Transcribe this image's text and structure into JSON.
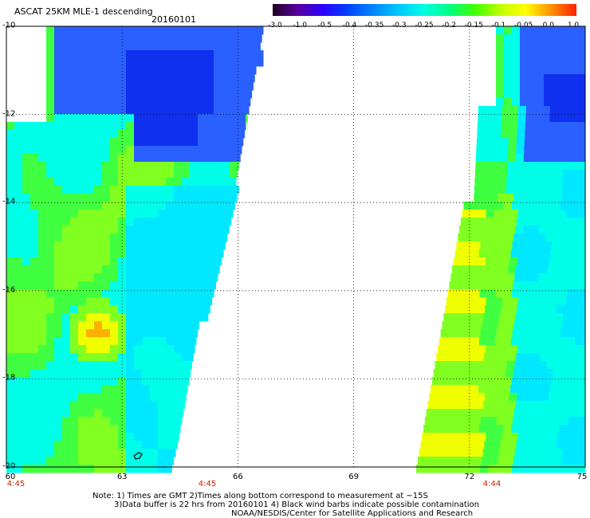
{
  "header": {
    "title": "ASCAT 25KM MLE-1 descending",
    "date": "20160101"
  },
  "colorbar": {
    "labels": [
      "-3.0",
      "-1.0",
      "-0.5",
      "-0.4",
      "-0.35",
      "-0.3",
      "-0.25",
      "-0.2",
      "-0.15",
      "-0.1",
      "-0.05",
      "0.0",
      "1.0"
    ],
    "colors": [
      "#200020",
      "#5a00a0",
      "#2a00ff",
      "#0044ff",
      "#0088ff",
      "#00c8ff",
      "#00ffe0",
      "#00ff80",
      "#40ff00",
      "#c0ff00",
      "#ffff00",
      "#ff9000",
      "#ff2000"
    ]
  },
  "map": {
    "lat_labels": [
      "-10",
      "-12",
      "-14",
      "-16",
      "-18",
      "-20"
    ],
    "lon_labels": [
      "60",
      "63",
      "66",
      "69",
      "72",
      "75"
    ],
    "time_labels": [
      "4:45",
      "4:45",
      "4:44"
    ]
  },
  "notes": {
    "line1": "Note: 1) Times are GMT 2)Times along bottom correspond to measurement at ~15S",
    "line2": "3)Data buffer is 22 hrs from 20160101 4) Black wind barbs indicate possible contamination",
    "line3": "NOAA/NESDIS/Center for Satellite Applications and Research"
  }
}
